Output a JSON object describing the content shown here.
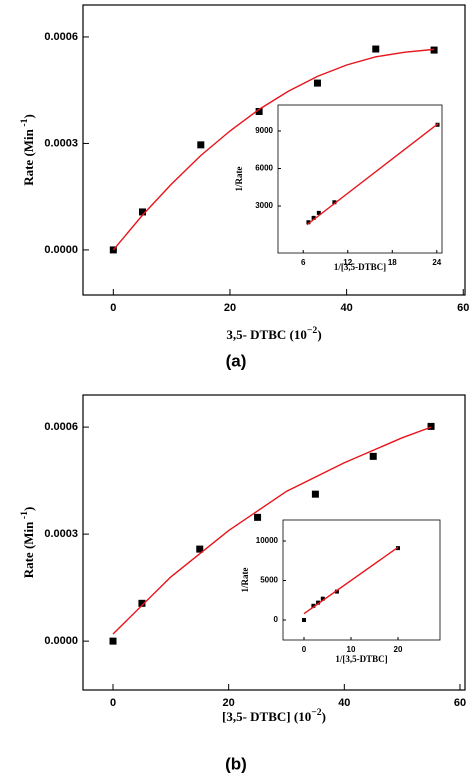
{
  "chart_data": [
    {
      "type": "scatter",
      "caption": "(a)",
      "x_label": {
        "text": "3,5- DTBC (10",
        "sup": "−2",
        "end": ")"
      },
      "y_label": {
        "text": "Rate  (Min",
        "sup": " -1",
        "end": ")"
      },
      "xlim": [
        -5.2,
        60.3
      ],
      "ylim": [
        -0.000127,
        0.00069
      ],
      "xticks": [
        0,
        20,
        40,
        60
      ],
      "yticks": [
        {
          "value": 0,
          "label": "0.0000"
        },
        0.0003,
        0.0006
      ],
      "series": [
        {
          "color": "#000000",
          "marker": "square",
          "x": [
            0,
            5,
            15,
            25,
            35,
            45,
            55
          ],
          "values": [
            0,
            0.000107,
            0.000296,
            0.00039,
            0.00047,
            0.000566,
            0.000563
          ]
        },
        {
          "color": "#e8141b",
          "line": true,
          "x": [
            0,
            5,
            10,
            15,
            20,
            25,
            30,
            35,
            40,
            45,
            50,
            55
          ],
          "values": [
            0,
            9.8e-05,
            0.000186,
            0.000266,
            0.000335,
            0.000396,
            0.000447,
            0.000489,
            0.000521,
            0.000544,
            0.000557,
            0.000565
          ]
        }
      ]
    },
    {
      "type": "scatter",
      "x_label": {
        "text": "1/[3,5-DTBC]"
      },
      "y_label": {
        "text": "1/Rate"
      },
      "xlim": [
        2.6,
        24.7
      ],
      "ylim": [
        -760,
        11080
      ],
      "xticks": [
        6,
        12,
        18,
        24
      ],
      "yticks": [
        3000,
        6000,
        9000
      ],
      "series": [
        {
          "color": "#000000",
          "marker": "square",
          "x": [
            6.7,
            7.4,
            8.1,
            10.2,
            24.1
          ],
          "values": [
            1700,
            2050,
            2450,
            3300,
            9500
          ]
        },
        {
          "color": "#e8141b",
          "line": true,
          "x": [
            6.5,
            24.2
          ],
          "values": [
            1500,
            9600
          ]
        }
      ]
    },
    {
      "type": "scatter",
      "caption": "(b)",
      "x_label": {
        "text": "[3,5- DTBC] (10",
        "sup": "−2",
        "end": ")"
      },
      "y_label": {
        "text": "Rate  (Min",
        "sup": " -1",
        "end": ")"
      },
      "xlim": [
        -5.19,
        60.87
      ],
      "ylim": [
        -0.000137,
        0.00069
      ],
      "xticks": [
        0,
        20,
        40,
        60
      ],
      "yticks": [
        {
          "value": 0,
          "label": "0.0000"
        },
        0.0003,
        0.0006
      ],
      "series": [
        {
          "color": "#000000",
          "marker": "square",
          "x": [
            0,
            5,
            15,
            25,
            35,
            45,
            55
          ],
          "values": [
            0,
            0.000106,
            0.000258,
            0.000347,
            0.000412,
            0.000518,
            0.000602
          ]
        },
        {
          "color": "#e8141b",
          "line": true,
          "x": [
            0,
            10,
            20,
            30,
            40,
            50,
            55
          ],
          "values": [
            2e-05,
            0.00018,
            0.00031,
            0.00042,
            0.0005,
            0.00057,
            0.0006
          ]
        }
      ]
    },
    {
      "type": "scatter",
      "x_label": {
        "text": "1/[3,5-DTBC]"
      },
      "y_label": {
        "text": "1/Rate"
      },
      "xlim": [
        -4.47,
        28.94
      ],
      "ylim": [
        -2530,
        12660
      ],
      "xticks": [
        0,
        10,
        20
      ],
      "yticks": [
        0,
        5000,
        10000
      ],
      "series": [
        {
          "color": "#000000",
          "marker": "square",
          "x": [
            0,
            2,
            3,
            4,
            7,
            20
          ],
          "values": [
            0,
            1800,
            2200,
            2700,
            3600,
            9100
          ]
        },
        {
          "color": "#e8141b",
          "line": true,
          "x": [
            0,
            20
          ],
          "values": [
            800,
            9200
          ]
        }
      ]
    }
  ]
}
